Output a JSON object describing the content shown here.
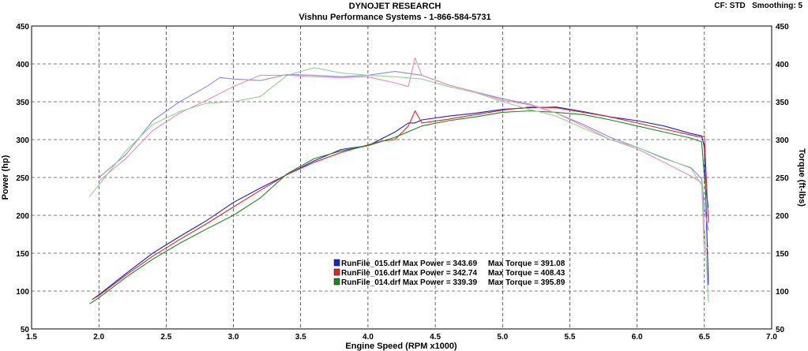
{
  "header": {
    "title": "DYNOJET RESEARCH",
    "subtitle": "Vishnu Performance Systems - 1-866-584-5731",
    "corner_info": "CF: STD   Smoothing: 5"
  },
  "colors": {
    "run_015": "#1f1fd6",
    "run_016": "#e0262a",
    "run_014": "#1a8a1a",
    "run_015_torque": "#8a8af0",
    "run_016_torque": "#f08ab0",
    "run_014_torque": "#8fd48f"
  },
  "chart_data": {
    "type": "line",
    "title": "DYNOJET RESEARCH",
    "subtitle": "Vishnu Performance Systems - 1-866-584-5731",
    "xlabel": "Engine Speed (RPM x1000)",
    "ylabel_left": "Power (hp)",
    "ylabel_right": "Torque (ft-lbs)",
    "xlim": [
      1.5,
      7.0
    ],
    "ylim": [
      50,
      450
    ],
    "xticks": [
      "1.5",
      "2.0",
      "2.5",
      "3.0",
      "3.5",
      "4.0",
      "4.5",
      "5.0",
      "5.5",
      "6.0",
      "6.5",
      "7.0"
    ],
    "yticks": [
      "50",
      "100",
      "150",
      "200",
      "250",
      "300",
      "350",
      "400",
      "450"
    ],
    "grid": "dashed",
    "legend_position": "bottom-center",
    "legend": [
      "RunFile_015.drf Max Power = 343.69     Max Torque = 391.08",
      "RunFile_016.drf Max Power = 342.74     Max Torque = 408.43",
      "RunFile_014.drf Max Power = 339.39     Max Torque = 395.89"
    ],
    "series": [
      {
        "kind": "power",
        "x": [
          1.95,
          2.0,
          2.2,
          2.4,
          2.6,
          2.8,
          3.0,
          3.2,
          3.4,
          3.6,
          3.8,
          4.0,
          4.2,
          4.3,
          4.35,
          4.4,
          4.6,
          4.8,
          5.0,
          5.2,
          5.4,
          5.6,
          5.8,
          6.0,
          6.2,
          6.4,
          6.48,
          6.5,
          6.53
        ],
        "y": [
          89,
          95,
          123,
          150,
          172,
          193,
          217,
          236,
          254,
          272,
          287,
          292,
          310,
          322,
          322,
          326,
          331,
          335,
          340,
          342,
          343,
          337,
          330,
          325,
          318,
          308,
          305,
          290,
          108
        ]
      },
      {
        "kind": "power",
        "x": [
          1.95,
          2.0,
          2.2,
          2.4,
          2.6,
          2.8,
          3.0,
          3.2,
          3.4,
          3.6,
          3.8,
          4.0,
          4.1,
          4.2,
          4.3,
          4.35,
          4.4,
          4.6,
          4.8,
          5.0,
          5.2,
          5.4,
          5.6,
          5.8,
          6.0,
          6.2,
          6.4,
          6.48,
          6.5,
          6.53
        ],
        "y": [
          89,
          94,
          121,
          146,
          168,
          189,
          211,
          233,
          254,
          270,
          283,
          293,
          298,
          300,
          318,
          338,
          322,
          327,
          333,
          339,
          343,
          342,
          336,
          330,
          322,
          314,
          306,
          303,
          305,
          190
        ]
      },
      {
        "kind": "power",
        "x": [
          1.93,
          2.0,
          2.2,
          2.4,
          2.6,
          2.8,
          3.0,
          3.2,
          3.4,
          3.6,
          3.8,
          4.0,
          4.2,
          4.4,
          4.6,
          4.8,
          5.0,
          5.2,
          5.4,
          5.6,
          5.8,
          6.0,
          6.2,
          6.4,
          6.48,
          6.5,
          6.53
        ],
        "y": [
          83,
          91,
          118,
          142,
          163,
          182,
          200,
          223,
          255,
          275,
          285,
          292,
          303,
          318,
          325,
          330,
          336,
          338,
          336,
          333,
          326,
          318,
          310,
          302,
          297,
          250,
          210
        ]
      },
      {
        "kind": "torque",
        "x": [
          2.0,
          2.2,
          2.4,
          2.6,
          2.8,
          2.9,
          3.0,
          3.2,
          3.4,
          3.6,
          3.8,
          4.0,
          4.2,
          4.4,
          4.6,
          4.8,
          5.0,
          5.2,
          5.4,
          5.6,
          5.8,
          6.0,
          6.2,
          6.4,
          6.48,
          6.5,
          6.53
        ],
        "y": [
          250,
          280,
          325,
          350,
          370,
          382,
          380,
          378,
          386,
          385,
          383,
          385,
          390,
          385,
          372,
          363,
          354,
          347,
          335,
          320,
          303,
          290,
          275,
          263,
          248,
          210,
          180
        ]
      },
      {
        "kind": "torque",
        "x": [
          2.0,
          2.2,
          2.4,
          2.6,
          2.8,
          3.0,
          3.2,
          3.4,
          3.6,
          3.8,
          4.0,
          4.2,
          4.3,
          4.35,
          4.4,
          4.6,
          4.8,
          5.0,
          5.2,
          5.4,
          5.6,
          5.8,
          6.0,
          6.2,
          6.4,
          6.48,
          6.5,
          6.53
        ],
        "y": [
          245,
          275,
          312,
          335,
          352,
          370,
          385,
          385,
          383,
          382,
          383,
          375,
          370,
          408,
          385,
          372,
          363,
          352,
          346,
          335,
          318,
          300,
          288,
          270,
          252,
          243,
          150,
          160
        ]
      },
      {
        "kind": "torque",
        "x": [
          1.93,
          2.0,
          2.2,
          2.4,
          2.6,
          2.8,
          3.0,
          3.2,
          3.4,
          3.6,
          3.8,
          4.0,
          4.2,
          4.4,
          4.6,
          4.8,
          5.0,
          5.2,
          5.4,
          5.6,
          5.8,
          6.0,
          6.2,
          6.4,
          6.48,
          6.5,
          6.53
        ],
        "y": [
          225,
          240,
          285,
          320,
          337,
          348,
          350,
          357,
          385,
          395,
          388,
          385,
          383,
          380,
          370,
          362,
          350,
          340,
          331,
          315,
          300,
          290,
          276,
          262,
          240,
          190,
          85
        ]
      }
    ]
  }
}
